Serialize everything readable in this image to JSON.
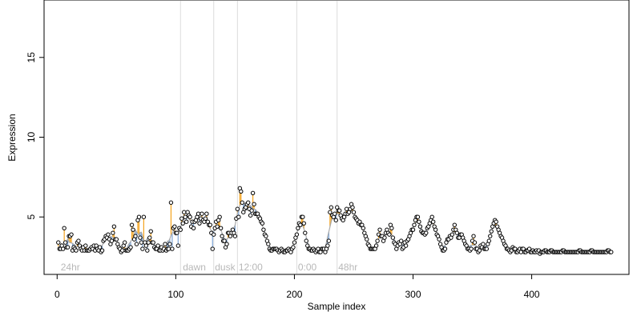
{
  "chart_data": {
    "type": "scatter",
    "title": "",
    "xlabel": "Sample index",
    "ylabel": "Expression",
    "xlim": [
      -11,
      482
    ],
    "ylim": [
      1.4,
      18.6
    ],
    "x_ticks": [
      0,
      100,
      200,
      300,
      400
    ],
    "y_ticks": [
      5,
      10,
      15
    ],
    "grid": false,
    "legend": "none",
    "colors": {
      "points": "#000000",
      "above_fit": "#f4a21c",
      "below_fit": "#7ea6d8",
      "fit_line": "#aaaaaa",
      "separators": "#dcdcdc",
      "segment_labels": "#b8b8b8"
    },
    "segments": [
      {
        "label": "24hr",
        "x": 3
      },
      {
        "label": "dawn",
        "x": 106
      },
      {
        "label": "dusk",
        "x": 133
      },
      {
        "label": "12:00",
        "x": 153
      },
      {
        "label": "0:00",
        "x": 203
      },
      {
        "label": "48hr",
        "x": 237
      }
    ],
    "separators_x": [
      104,
      132,
      152,
      202,
      236
    ],
    "series": [
      {
        "y": [
          3.4,
          3.0,
          3.0,
          3.2,
          3.0,
          4.3,
          3.4,
          3.1,
          3.1,
          3.8,
          3.8,
          3.9,
          2.9,
          3.1,
          3.0,
          2.9,
          3.4,
          3.5,
          3.2,
          3.0,
          2.9,
          3.1,
          2.9,
          3.2,
          2.9,
          2.9,
          2.9,
          3.0,
          3.1,
          3.0,
          3.2,
          2.9,
          3.2,
          3.0,
          2.9,
          3.1,
          2.8,
          2.9,
          3.5,
          3.6,
          3.8,
          3.7,
          3.9,
          3.6,
          3.3,
          3.5,
          4.0,
          4.4,
          3.6,
          3.6,
          3.3,
          3.1,
          3.0,
          2.8,
          2.9,
          3.2,
          3.4,
          2.9,
          2.9,
          2.9,
          3.0,
          3.1,
          4.5,
          4.2,
          3.6,
          3.8,
          3.3,
          4.8,
          5.0,
          3.7,
          3.4,
          3.0,
          5.0,
          3.4,
          3.2,
          2.9,
          3.4,
          3.7,
          4.1,
          3.4,
          3.4,
          3.1,
          3.0,
          3.0,
          3.2,
          2.9,
          2.9,
          3.1,
          2.9,
          3.0,
          3.3,
          2.9,
          3.0,
          3.0,
          3.3,
          5.9,
          3.0,
          4.3,
          4.4,
          4.0,
          4.0,
          3.2,
          4.3,
          4.2,
          4.9,
          4.6,
          5.3,
          5.0,
          4.7,
          5.3,
          5.1,
          5.0,
          4.4,
          4.7,
          4.3,
          4.7,
          4.8,
          5.0,
          5.2,
          4.6,
          4.9,
          5.2,
          4.8,
          4.7,
          4.9,
          5.2,
          4.7,
          4.5,
          4.5,
          4.0,
          3.0,
          3.9,
          4.3,
          4.7,
          4.4,
          4.8,
          5.0,
          4.3,
          3.8,
          3.5,
          3.5,
          3.1,
          3.3,
          4.0,
          4.0,
          3.8,
          4.0,
          4.2,
          4.0,
          3.8,
          4.9,
          5.5,
          5.0,
          6.8,
          6.6,
          5.9,
          5.3,
          5.5,
          5.6,
          5.8,
          5.9,
          5.5,
          5.1,
          5.4,
          6.5,
          5.8,
          5.2,
          5.2,
          5.2,
          5.0,
          4.9,
          4.7,
          4.6,
          4.2,
          3.9,
          3.8,
          3.5,
          3.3,
          3.0,
          2.9,
          2.9,
          3.0,
          3.0,
          3.0,
          3.0,
          2.9,
          2.8,
          2.9,
          3.0,
          2.9,
          2.8,
          2.8,
          2.9,
          2.9,
          3.0,
          2.9,
          2.8,
          3.0,
          3.1,
          3.4,
          3.7,
          3.9,
          4.3,
          4.6,
          4.5,
          5.0,
          5.0,
          4.6,
          4.0,
          3.5,
          3.2,
          3.0,
          3.0,
          2.9,
          2.9,
          3.0,
          2.9,
          2.8,
          2.9,
          3.0,
          2.8,
          2.8,
          3.0,
          3.0,
          3.0,
          2.8,
          3.0,
          3.2,
          3.5,
          5.3,
          5.6,
          5.1,
          5.0,
          5.2,
          4.8,
          5.6,
          5.4,
          5.4,
          5.1,
          4.9,
          4.8,
          5.0,
          5.2,
          5.5,
          5.2,
          5.3,
          5.5,
          5.8,
          5.6,
          5.3,
          5.0,
          4.9,
          4.8,
          4.6,
          4.7,
          4.5,
          4.5,
          4.3,
          4.0,
          3.8,
          3.6,
          3.3,
          3.2,
          3.0,
          3.0,
          3.0,
          3.0,
          3.0,
          3.2,
          3.5,
          3.9,
          4.2,
          3.8,
          3.8,
          3.5,
          3.7,
          4.0,
          4.2,
          4.0,
          3.9,
          4.5,
          4.3,
          3.7,
          3.4,
          3.3,
          3.0,
          3.2,
          3.4,
          3.3,
          3.5,
          3.0,
          3.1,
          3.4,
          3.2,
          3.5,
          3.6,
          3.8,
          4.0,
          4.2,
          4.2,
          4.5,
          4.8,
          5.0,
          5.0,
          4.7,
          4.4,
          4.1,
          4.0,
          4.0,
          3.9,
          4.0,
          4.3,
          4.4,
          4.6,
          4.8,
          5.0,
          4.7,
          4.4,
          4.2,
          3.9,
          3.8,
          3.6,
          3.3,
          3.1,
          2.9,
          2.9,
          3.0,
          3.4,
          3.6,
          3.6,
          3.8,
          3.7,
          3.9,
          4.2,
          4.5,
          4.2,
          4.0,
          3.7,
          3.7,
          3.9,
          3.9,
          3.7,
          3.5,
          3.3,
          3.2,
          3.0,
          3.0,
          2.9,
          3.0,
          3.5,
          3.8,
          3.4,
          3.0,
          3.0,
          2.8,
          2.9,
          3.2,
          3.1,
          3.3,
          3.0,
          3.0,
          3.0,
          3.3,
          3.5,
          3.8,
          4.1,
          4.4,
          4.6,
          4.8,
          4.7,
          4.4,
          4.2,
          4.0,
          3.8,
          3.7,
          3.5,
          3.3,
          3.2,
          3.0,
          3.0,
          2.9,
          2.8,
          2.9,
          3.1,
          3.0,
          3.0,
          2.8,
          2.8,
          2.9,
          3.0,
          2.8,
          3.0,
          3.0,
          2.8,
          2.8,
          2.9,
          2.9,
          3.0,
          2.8,
          2.8,
          2.9,
          2.8,
          2.8,
          2.9,
          2.8,
          2.9,
          2.7,
          2.8,
          2.8,
          2.8,
          2.9,
          2.9,
          2.8,
          2.8,
          2.8,
          2.9,
          2.9,
          2.8,
          2.8,
          2.8,
          2.8,
          2.8,
          2.8,
          2.8,
          2.8,
          2.9,
          2.9,
          2.8,
          2.8,
          2.8,
          2.8,
          2.8,
          2.8,
          2.8,
          2.8,
          2.8,
          2.8,
          2.8,
          2.8,
          2.9,
          2.9,
          2.8,
          2.8,
          2.8,
          2.8,
          2.8,
          2.8,
          2.8,
          2.8,
          2.9,
          2.9,
          2.8,
          2.8,
          2.8,
          2.8,
          2.8,
          2.8,
          2.8,
          2.8,
          2.8,
          2.8,
          2.8,
          2.8,
          2.9,
          2.9,
          2.8,
          2.8
        ]
      }
    ]
  }
}
